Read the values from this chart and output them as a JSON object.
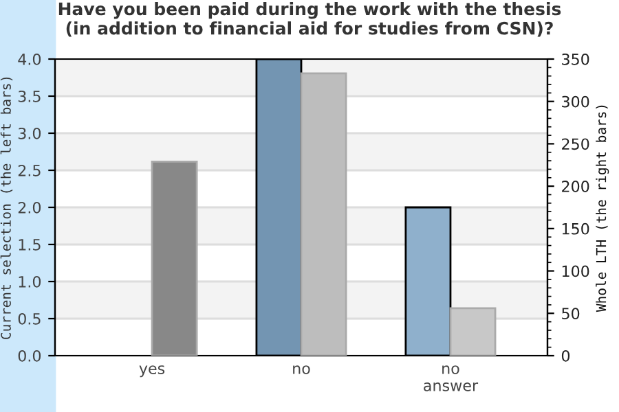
{
  "chart_data": {
    "type": "bar",
    "title": "Have you been paid during the work with the thesis\n(in addition to financial aid for studies from CSN)?",
    "categories": [
      "yes",
      "no",
      "no\nanswer"
    ],
    "series": [
      {
        "colors": [
          "#7395b2",
          "#7395b2",
          "#8fb0cc"
        ],
        "values": [
          0,
          4,
          2
        ]
      },
      {
        "colors": [
          "#888888",
          "#bdbdbd",
          "#c8c8c8"
        ],
        "values": [
          229,
          333,
          56
        ],
        "axis": "y2"
      }
    ],
    "ylabel": "Current selection (the left bars)",
    "y2label": "Whole LTH (the right bars)",
    "ylim": [
      0,
      4
    ],
    "yticks": [
      {
        "value": 0,
        "label": "0.0"
      },
      {
        "value": 0.5,
        "label": "0.5"
      },
      {
        "value": 1,
        "label": "1.0"
      },
      {
        "value": 1.5,
        "label": "1.5"
      },
      {
        "value": 2,
        "label": "2.0"
      },
      {
        "value": 2.5,
        "label": "2.5"
      },
      {
        "value": 3,
        "label": "3.0"
      },
      {
        "value": 3.5,
        "label": "3.5"
      },
      {
        "value": 4,
        "label": "4.0"
      }
    ],
    "y2lim": [
      0,
      350
    ],
    "y2ticks": [
      0,
      50,
      100,
      150,
      200,
      250,
      300,
      350
    ],
    "grid": "y",
    "legend": false
  }
}
